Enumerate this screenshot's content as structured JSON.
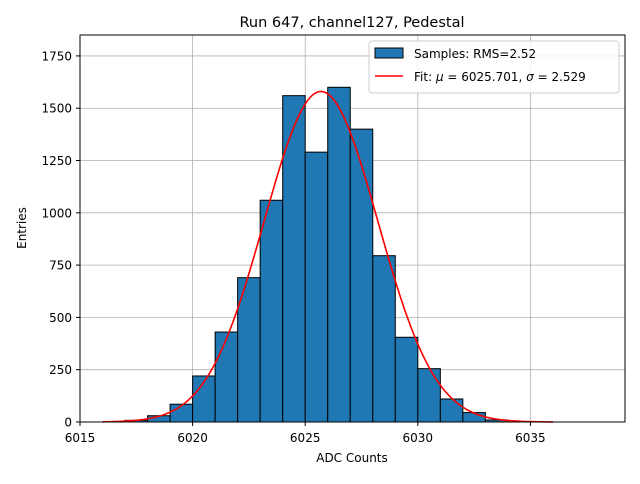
{
  "chart_data": {
    "type": "bar",
    "title": "Run 647, channel127, Pedestal",
    "xlabel": "ADC Counts",
    "ylabel": "Entries",
    "xlim": [
      6015,
      6039.2
    ],
    "ylim": [
      0,
      1850
    ],
    "xticks": [
      6015,
      6020,
      6025,
      6030,
      6035
    ],
    "yticks": [
      0,
      250,
      500,
      750,
      1000,
      1250,
      1500,
      1750
    ],
    "grid": true,
    "legend_position": "top-right",
    "bin_width": 1,
    "histogram": {
      "name": "Samples: RMS=2.52",
      "color": "#1f77b4",
      "edge_color": "#000000",
      "bin_starts": [
        6017,
        6018,
        6019,
        6020,
        6021,
        6022,
        6023,
        6024,
        6025,
        6026,
        6027,
        6028,
        6029,
        6030,
        6031,
        6032,
        6033
      ],
      "values": [
        8,
        30,
        85,
        220,
        430,
        690,
        1060,
        1560,
        1290,
        1600,
        1400,
        795,
        405,
        255,
        110,
        45,
        10
      ]
    },
    "fit": {
      "name": "Fit: μ = 6025.701, σ = 2.529",
      "label_parts": [
        "Fit: ",
        "μ",
        " = 6025.701, ",
        "σ",
        " = 2.529"
      ],
      "color": "#ff0000",
      "mu": 6025.701,
      "sigma": 2.529,
      "amplitude": 1580,
      "x_range": [
        6016,
        6036
      ]
    }
  }
}
